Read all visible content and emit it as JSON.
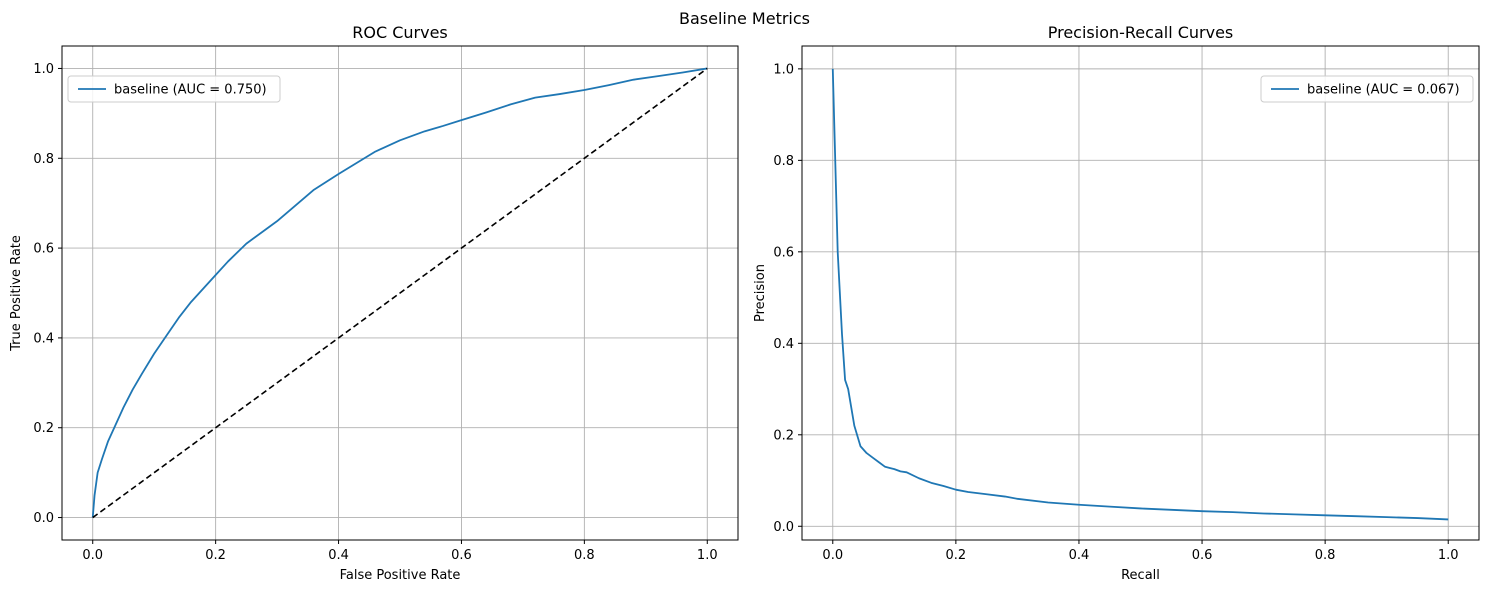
{
  "figure": {
    "suptitle": "Baseline Metrics"
  },
  "colors": {
    "series": "#1f77b4",
    "reference": "#000000",
    "grid": "#b0b0b0",
    "axes": "#000000"
  },
  "chart_data": [
    {
      "type": "line",
      "title": "ROC Curves",
      "xlabel": "False Positive Rate",
      "ylabel": "True Positive Rate",
      "xlim": [
        -0.05,
        1.05
      ],
      "ylim": [
        -0.05,
        1.05
      ],
      "xticks": [
        0.0,
        0.2,
        0.4,
        0.6,
        0.8,
        1.0
      ],
      "yticks": [
        0.0,
        0.2,
        0.4,
        0.6,
        0.8,
        1.0
      ],
      "xtick_labels": [
        "0.0",
        "0.2",
        "0.4",
        "0.6",
        "0.8",
        "1.0"
      ],
      "ytick_labels": [
        "0.0",
        "0.2",
        "0.4",
        "0.6",
        "0.8",
        "1.0"
      ],
      "grid": true,
      "legend_position": "upper left",
      "series": [
        {
          "name": "baseline (AUC = 0.750)",
          "style": "solid",
          "x": [
            0.0,
            0.003,
            0.008,
            0.015,
            0.025,
            0.035,
            0.05,
            0.065,
            0.08,
            0.1,
            0.12,
            0.14,
            0.16,
            0.18,
            0.2,
            0.22,
            0.25,
            0.28,
            0.3,
            0.33,
            0.36,
            0.4,
            0.43,
            0.46,
            0.5,
            0.54,
            0.57,
            0.6,
            0.64,
            0.68,
            0.72,
            0.76,
            0.8,
            0.84,
            0.88,
            0.92,
            0.96,
            1.0
          ],
          "y": [
            0.0,
            0.05,
            0.1,
            0.13,
            0.17,
            0.2,
            0.245,
            0.285,
            0.32,
            0.365,
            0.405,
            0.445,
            0.48,
            0.51,
            0.54,
            0.57,
            0.61,
            0.64,
            0.66,
            0.695,
            0.73,
            0.765,
            0.79,
            0.815,
            0.84,
            0.86,
            0.872,
            0.885,
            0.902,
            0.92,
            0.935,
            0.943,
            0.952,
            0.963,
            0.975,
            0.983,
            0.991,
            1.0
          ]
        },
        {
          "name": "",
          "style": "dashed",
          "x": [
            0.0,
            1.0
          ],
          "y": [
            0.0,
            1.0
          ]
        }
      ]
    },
    {
      "type": "line",
      "title": "Precision-Recall Curves",
      "xlabel": "Recall",
      "ylabel": "Precision",
      "xlim": [
        -0.05,
        1.05
      ],
      "ylim": [
        -0.03,
        1.05
      ],
      "xticks": [
        0.0,
        0.2,
        0.4,
        0.6,
        0.8,
        1.0
      ],
      "yticks": [
        0.0,
        0.2,
        0.4,
        0.6,
        0.8,
        1.0
      ],
      "xtick_labels": [
        "0.0",
        "0.2",
        "0.4",
        "0.6",
        "0.8",
        "1.0"
      ],
      "ytick_labels": [
        "0.0",
        "0.2",
        "0.4",
        "0.6",
        "0.8",
        "1.0"
      ],
      "grid": true,
      "legend_position": "upper right",
      "series": [
        {
          "name": "baseline (AUC = 0.067)",
          "style": "solid",
          "x": [
            0.0,
            0.003,
            0.008,
            0.015,
            0.02,
            0.025,
            0.035,
            0.045,
            0.055,
            0.065,
            0.075,
            0.085,
            0.1,
            0.11,
            0.12,
            0.14,
            0.16,
            0.18,
            0.2,
            0.22,
            0.25,
            0.28,
            0.3,
            0.35,
            0.4,
            0.45,
            0.5,
            0.55,
            0.6,
            0.65,
            0.7,
            0.75,
            0.8,
            0.85,
            0.9,
            0.95,
            1.0
          ],
          "y": [
            1.0,
            0.85,
            0.6,
            0.42,
            0.32,
            0.3,
            0.22,
            0.175,
            0.16,
            0.15,
            0.14,
            0.13,
            0.125,
            0.12,
            0.118,
            0.105,
            0.095,
            0.088,
            0.08,
            0.075,
            0.07,
            0.065,
            0.06,
            0.052,
            0.047,
            0.043,
            0.039,
            0.036,
            0.033,
            0.031,
            0.028,
            0.026,
            0.024,
            0.022,
            0.02,
            0.018,
            0.015
          ]
        }
      ]
    }
  ]
}
